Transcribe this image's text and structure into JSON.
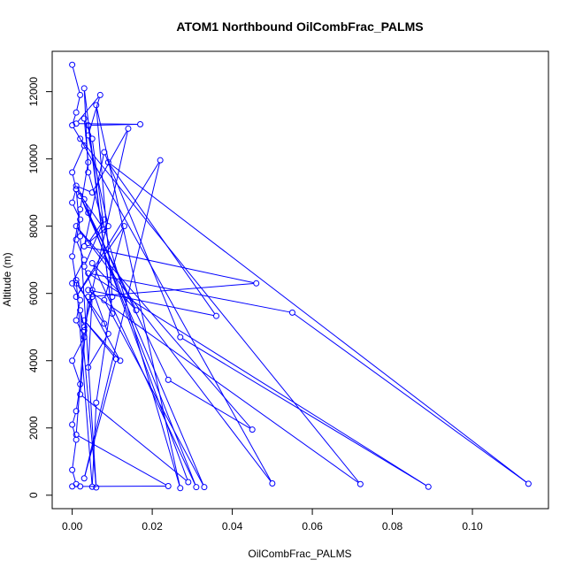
{
  "chart_data": {
    "type": "line",
    "title": "ATOM1 Northbound OilCombFrac_PALMS",
    "xlabel": "OilCombFrac_PALMS",
    "ylabel": "Altitude (m)",
    "xlim": [
      -0.005,
      0.119
    ],
    "ylim": [
      -400,
      13200
    ],
    "x_ticks": [
      0.0,
      0.02,
      0.04,
      0.06,
      0.08,
      0.1
    ],
    "x_tick_labels": [
      "0.00",
      "0.02",
      "0.04",
      "0.06",
      "0.08",
      "0.10"
    ],
    "y_ticks": [
      0,
      2000,
      4000,
      6000,
      8000,
      10000,
      12000
    ],
    "y_tick_labels": [
      "0",
      "2000",
      "4000",
      "6000",
      "8000",
      "10000",
      "12000"
    ],
    "grid": false,
    "marker": "open-circle",
    "color": "#0000ff",
    "series": [
      {
        "points": [
          [
            0.0,
            12800
          ],
          [
            0.002,
            11900
          ],
          [
            0.001,
            11380
          ],
          [
            0.0,
            11000
          ],
          [
            0.003,
            10400
          ],
          [
            0.0,
            9600
          ],
          [
            0.001,
            9100
          ],
          [
            0.0,
            8700
          ],
          [
            0.002,
            8200
          ],
          [
            0.001,
            7600
          ],
          [
            0.003,
            7000
          ],
          [
            0.0,
            6300
          ],
          [
            0.002,
            5800
          ],
          [
            0.001,
            5200
          ],
          [
            0.003,
            4700
          ],
          [
            0.0,
            4000
          ],
          [
            0.002,
            3300
          ],
          [
            0.001,
            2500
          ],
          [
            0.0,
            2100
          ],
          [
            0.001,
            1650
          ],
          [
            0.0,
            750
          ],
          [
            0.001,
            330
          ],
          [
            0.0,
            260
          ],
          [
            0.002,
            260
          ],
          [
            0.024,
            270
          ],
          [
            0.001,
            1800
          ],
          [
            0.003,
            4900
          ],
          [
            0.005,
            6100
          ],
          [
            0.014,
            10900
          ],
          [
            0.005,
            9000
          ],
          [
            0.001,
            9200
          ],
          [
            0.003,
            8800
          ],
          [
            0.029,
            390
          ],
          [
            0.002,
            3000
          ],
          [
            0.004,
            5900
          ],
          [
            0.046,
            6300
          ],
          [
            0.003,
            7400
          ],
          [
            0.008,
            10200
          ],
          [
            0.027,
            4700
          ],
          [
            0.089,
            250
          ],
          [
            0.004,
            6600
          ],
          [
            0.055,
            5430
          ],
          [
            0.114,
            340
          ],
          [
            0.009,
            9900
          ],
          [
            0.036,
            5330
          ],
          [
            0.004,
            6100
          ],
          [
            0.072,
            330
          ],
          [
            0.002,
            10600
          ],
          [
            0.05,
            350
          ],
          [
            0.001,
            8000
          ],
          [
            0.045,
            1950
          ],
          [
            0.024,
            3430
          ],
          [
            0.004,
            8400
          ],
          [
            0.031,
            240
          ],
          [
            0.005,
            6900
          ],
          [
            0.016,
            5500
          ],
          [
            0.002,
            8900
          ],
          [
            0.033,
            240
          ],
          [
            0.008,
            5800
          ],
          [
            0.013,
            8000
          ],
          [
            0.001,
            5900
          ],
          [
            0.022,
            9960
          ],
          [
            0.003,
            500
          ],
          [
            0.011,
            4050
          ],
          [
            0.003,
            5200
          ],
          [
            0.012,
            4000
          ],
          [
            0.001,
            6400
          ],
          [
            0.005,
            250
          ],
          [
            0.006,
            2750
          ],
          [
            0.01,
            5900
          ],
          [
            0.006,
            11600
          ],
          [
            0.027,
            210
          ],
          [
            0.004,
            9600
          ],
          [
            0.003,
            12100
          ],
          [
            0.01,
            5400
          ],
          [
            0.004,
            11000
          ],
          [
            0.017,
            11030
          ],
          [
            0.001,
            11050
          ],
          [
            0.007,
            11900
          ],
          [
            0.004,
            10700
          ],
          [
            0.009,
            8000
          ],
          [
            0.004,
            7500
          ],
          [
            0.008,
            8200
          ],
          [
            0.003,
            6800
          ],
          [
            0.009,
            4800
          ],
          [
            0.004,
            3800
          ],
          [
            0.005,
            5900
          ],
          [
            0.003,
            5000
          ],
          [
            0.002,
            5500
          ],
          [
            0.006,
            230
          ],
          [
            0.002,
            7700
          ],
          [
            0.001,
            9100
          ],
          [
            0.008,
            7900
          ],
          [
            0.005,
            10600
          ],
          [
            0.003,
            11200
          ],
          [
            0.004,
            9900
          ],
          [
            0.002,
            8500
          ],
          [
            0.0,
            7100
          ],
          [
            0.001,
            6300
          ],
          [
            0.008,
            5100
          ]
        ]
      }
    ]
  }
}
